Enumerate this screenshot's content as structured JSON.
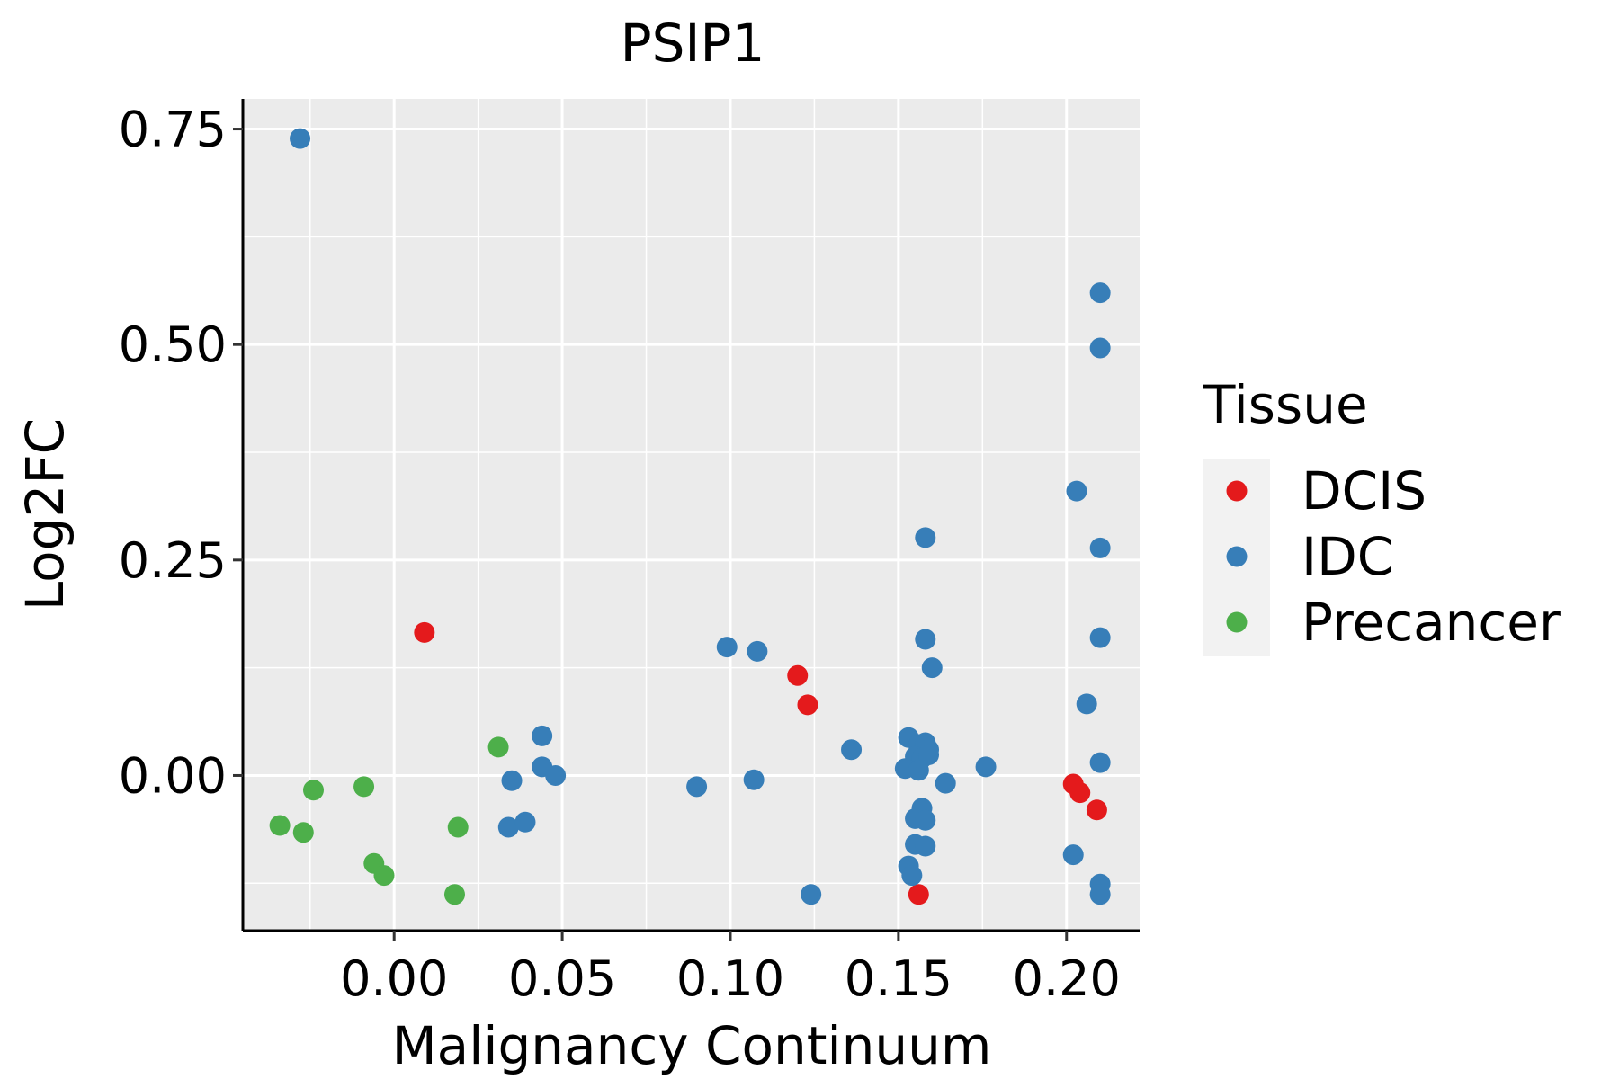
{
  "chart_data": {
    "type": "scatter",
    "title": "PSIP1",
    "xlabel": "Malignancy Continuum",
    "ylabel": "Log2FC",
    "xlim": [
      -0.045,
      0.222
    ],
    "ylim": [
      -0.18,
      0.785
    ],
    "xticks": [
      0.0,
      0.05,
      0.1,
      0.15,
      0.2
    ],
    "xtick_labels": [
      "0.00",
      "0.05",
      "0.10",
      "0.15",
      "0.20"
    ],
    "yticks": [
      0.0,
      0.25,
      0.5,
      0.75
    ],
    "ytick_labels": [
      "0.00",
      "0.25",
      "0.50",
      "0.75"
    ],
    "grid": true,
    "legend": {
      "title": "Tissue",
      "placement": "right"
    },
    "series": [
      {
        "name": "DCIS",
        "color": "#E41A1C",
        "points": [
          {
            "x": 0.009,
            "y": 0.166
          },
          {
            "x": 0.12,
            "y": 0.116
          },
          {
            "x": 0.123,
            "y": 0.082
          },
          {
            "x": 0.156,
            "y": -0.138
          },
          {
            "x": 0.202,
            "y": -0.01
          },
          {
            "x": 0.204,
            "y": -0.02
          },
          {
            "x": 0.209,
            "y": -0.04
          }
        ]
      },
      {
        "name": "IDC",
        "color": "#377EB8",
        "points": [
          {
            "x": -0.028,
            "y": 0.739
          },
          {
            "x": 0.21,
            "y": 0.56
          },
          {
            "x": 0.21,
            "y": 0.496
          },
          {
            "x": 0.203,
            "y": 0.33
          },
          {
            "x": 0.21,
            "y": 0.264
          },
          {
            "x": 0.158,
            "y": 0.276
          },
          {
            "x": 0.21,
            "y": 0.16
          },
          {
            "x": 0.158,
            "y": 0.158
          },
          {
            "x": 0.16,
            "y": 0.125
          },
          {
            "x": 0.099,
            "y": 0.149
          },
          {
            "x": 0.108,
            "y": 0.144
          },
          {
            "x": 0.206,
            "y": 0.083
          },
          {
            "x": 0.044,
            "y": 0.046
          },
          {
            "x": 0.136,
            "y": 0.03
          },
          {
            "x": 0.153,
            "y": 0.044
          },
          {
            "x": 0.156,
            "y": 0.036
          },
          {
            "x": 0.158,
            "y": 0.038
          },
          {
            "x": 0.159,
            "y": 0.03
          },
          {
            "x": 0.155,
            "y": 0.022
          },
          {
            "x": 0.157,
            "y": 0.02
          },
          {
            "x": 0.159,
            "y": 0.024
          },
          {
            "x": 0.152,
            "y": 0.008
          },
          {
            "x": 0.156,
            "y": 0.006
          },
          {
            "x": 0.176,
            "y": 0.01
          },
          {
            "x": 0.21,
            "y": 0.015
          },
          {
            "x": 0.044,
            "y": 0.01
          },
          {
            "x": 0.048,
            "y": 0.0
          },
          {
            "x": 0.035,
            "y": -0.006
          },
          {
            "x": 0.09,
            "y": -0.013
          },
          {
            "x": 0.107,
            "y": -0.005
          },
          {
            "x": 0.164,
            "y": -0.009
          },
          {
            "x": 0.157,
            "y": -0.038
          },
          {
            "x": 0.155,
            "y": -0.05
          },
          {
            "x": 0.158,
            "y": -0.052
          },
          {
            "x": 0.034,
            "y": -0.06
          },
          {
            "x": 0.039,
            "y": -0.054
          },
          {
            "x": 0.155,
            "y": -0.08
          },
          {
            "x": 0.158,
            "y": -0.082
          },
          {
            "x": 0.202,
            "y": -0.092
          },
          {
            "x": 0.153,
            "y": -0.105
          },
          {
            "x": 0.154,
            "y": -0.116
          },
          {
            "x": 0.21,
            "y": -0.126
          },
          {
            "x": 0.21,
            "y": -0.138
          },
          {
            "x": 0.124,
            "y": -0.138
          }
        ]
      },
      {
        "name": "Precancer",
        "color": "#4DAF4A",
        "points": [
          {
            "x": -0.034,
            "y": -0.058
          },
          {
            "x": -0.027,
            "y": -0.066
          },
          {
            "x": -0.024,
            "y": -0.017
          },
          {
            "x": -0.009,
            "y": -0.013
          },
          {
            "x": -0.006,
            "y": -0.102
          },
          {
            "x": -0.003,
            "y": -0.116
          },
          {
            "x": 0.018,
            "y": -0.138
          },
          {
            "x": 0.019,
            "y": -0.06
          },
          {
            "x": 0.031,
            "y": 0.033
          }
        ]
      }
    ]
  }
}
